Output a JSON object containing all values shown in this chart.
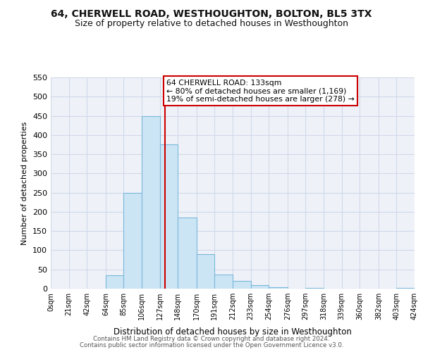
{
  "title": "64, CHERWELL ROAD, WESTHOUGHTON, BOLTON, BL5 3TX",
  "subtitle": "Size of property relative to detached houses in Westhoughton",
  "xlabel": "Distribution of detached houses by size in Westhoughton",
  "ylabel": "Number of detached properties",
  "bin_edges": [
    0,
    21,
    42,
    64,
    85,
    106,
    127,
    148,
    170,
    191,
    212,
    233,
    254,
    276,
    297,
    318,
    339,
    360,
    382,
    403,
    424
  ],
  "bin_heights": [
    0,
    0,
    0,
    35,
    250,
    450,
    375,
    185,
    90,
    37,
    20,
    10,
    3,
    0,
    1,
    0,
    0,
    0,
    0,
    1
  ],
  "bar_facecolor": "#cce5f5",
  "bar_edgecolor": "#7ab8d9",
  "vline_x": 133,
  "vline_color": "#cc0000",
  "annotation_text": "64 CHERWELL ROAD: 133sqm\n← 80% of detached houses are smaller (1,169)\n19% of semi-detached houses are larger (278) →",
  "annotation_box_edgecolor": "#cc0000",
  "annotation_box_facecolor": "#ffffff",
  "ylim": [
    0,
    550
  ],
  "yticks": [
    0,
    50,
    100,
    150,
    200,
    250,
    300,
    350,
    400,
    450,
    500,
    550
  ],
  "xticklabels": [
    "0sqm",
    "21sqm",
    "42sqm",
    "64sqm",
    "85sqm",
    "106sqm",
    "127sqm",
    "148sqm",
    "170sqm",
    "191sqm",
    "212sqm",
    "233sqm",
    "254sqm",
    "276sqm",
    "297sqm",
    "318sqm",
    "339sqm",
    "360sqm",
    "382sqm",
    "403sqm",
    "424sqm"
  ],
  "grid_color": "#d0d8e8",
  "background_color": "#eef2f8",
  "footer_line1": "Contains HM Land Registry data © Crown copyright and database right 2024.",
  "footer_line2": "Contains public sector information licensed under the Open Government Licence v3.0.",
  "title_fontsize": 10,
  "subtitle_fontsize": 9
}
